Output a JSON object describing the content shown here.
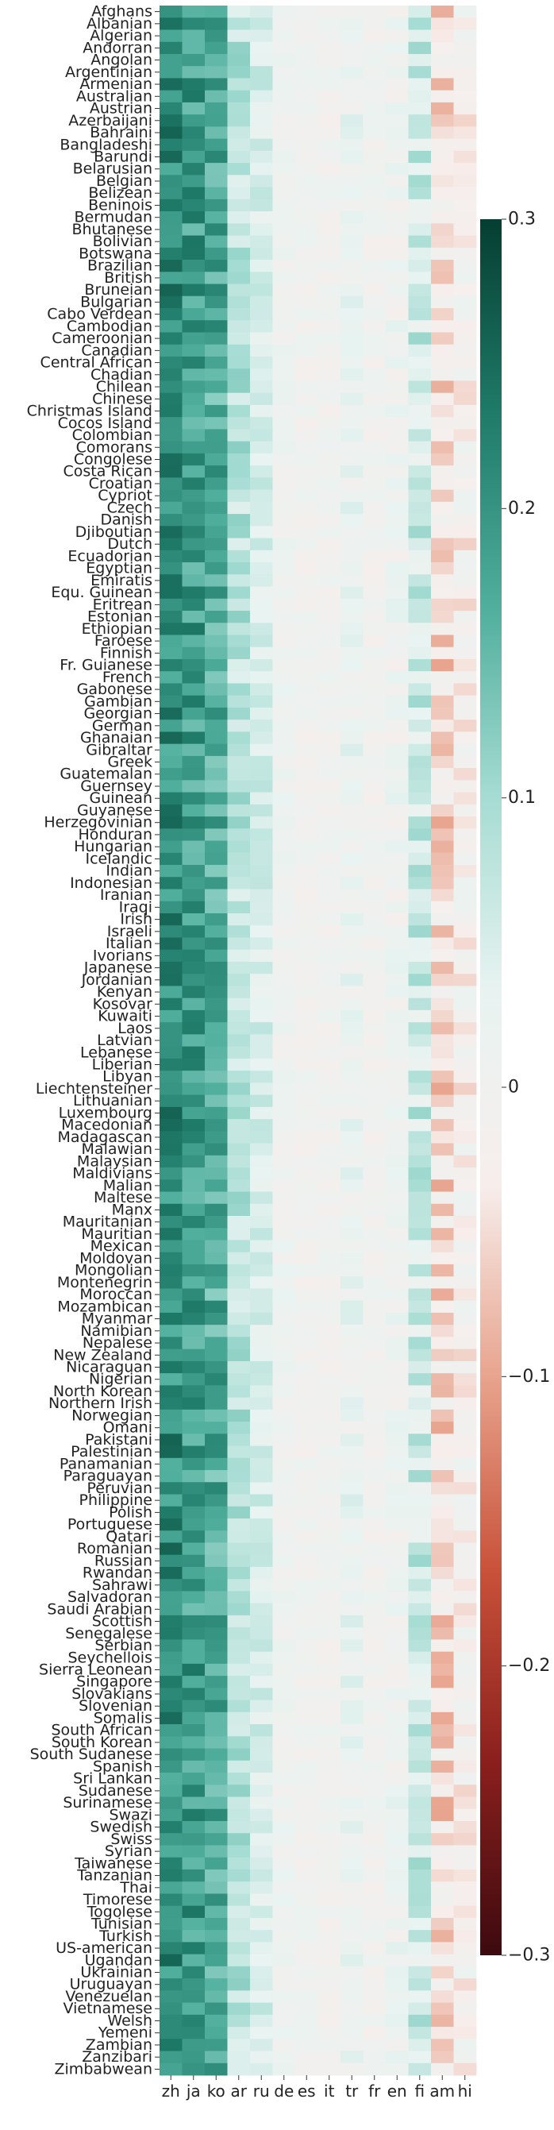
{
  "chart_data": {
    "type": "heatmap",
    "title": "",
    "xlabel": "",
    "ylabel": "",
    "columns": [
      "zh",
      "ja",
      "ko",
      "ar",
      "ru",
      "de",
      "es",
      "it",
      "tr",
      "fr",
      "en",
      "fi",
      "am",
      "hi"
    ],
    "rows": [
      "Afghans",
      "Albanian",
      "Algerian",
      "Andorran",
      "Angolan",
      "Argentinian",
      "Armenian",
      "Australian",
      "Austrian",
      "Azerbaijani",
      "Bahraini",
      "Bangladeshi",
      "Barundi",
      "Belarusian",
      "Belgian",
      "Belizean",
      "Beninois",
      "Bermudan",
      "Bhutanese",
      "Bolivian",
      "Botswana",
      "Brazilian",
      "British",
      "Bruneian",
      "Bulgarian",
      "Cabo Verdean",
      "Cambodian",
      "Cameroonian",
      "Canadian",
      "Central African",
      "Chadian",
      "Chilean",
      "Chinese",
      "Christmas Island",
      "Cocos Island",
      "Colombian",
      "Comorans",
      "Congolese",
      "Costa Rican",
      "Croatian",
      "Cypriot",
      "Czech",
      "Danish",
      "Djiboutian",
      "Dutch",
      "Ecuadorian",
      "Egyptian",
      "Emiratis",
      "Equ. Guinean",
      "Eritrean",
      "Estonian",
      "Ethiopian",
      "Faroese",
      "Finnish",
      "Fr. Guianese",
      "French",
      "Gabonese",
      "Gambian",
      "Georgian",
      "German",
      "Ghanaian",
      "Gibraltar",
      "Greek",
      "Guatemalan",
      "Guernsey",
      "Guinean",
      "Guyanese",
      "Herzegovinian",
      "Honduran",
      "Hungarian",
      "Icelandic",
      "Indian",
      "Indonesian",
      "Iranian",
      "Iraqi",
      "Irish",
      "Israeli",
      "Italian",
      "Ivorians",
      "Japanese",
      "Jordanian",
      "Kenyan",
      "Kosovar",
      "Kuwaiti",
      "Laos",
      "Latvian",
      "Lebanese",
      "Liberian",
      "Libyan",
      "Liechtensteiner",
      "Lithuanian",
      "Luxembourg",
      "Macedonian",
      "Madagascan",
      "Malawian",
      "Malaysian",
      "Maldivians",
      "Malian",
      "Maltese",
      "Manx",
      "Mauritanian",
      "Mauritian",
      "Mexican",
      "Moldovan",
      "Mongolian",
      "Montenegrin",
      "Moroccan",
      "Mozambican",
      "Myanmar",
      "Namibian",
      "Nepalese",
      "New Zealand",
      "Nicaraguan",
      "Nigerian",
      "North Korean",
      "Northern Irish",
      "Norwegian",
      "Omani",
      "Pakistani",
      "Palestinian",
      "Panamanian",
      "Paraguayan",
      "Peruvian",
      "Philippine",
      "Polish",
      "Portuguese",
      "Qatari",
      "Romanian",
      "Russian",
      "Rwandan",
      "Sahrawi",
      "Salvadoran",
      "Saudi Arabian",
      "Scottish",
      "Senegalese",
      "Serbian",
      "Seychellois",
      "Sierra Leonean",
      "Singapore",
      "Slovakians",
      "Slovenian",
      "Somalis",
      "South African",
      "South Korean",
      "South Sudanese",
      "Spanish",
      "Sri Lankan",
      "Sudanese",
      "Surinamese",
      "Swazi",
      "Swedish",
      "Swiss",
      "Syrian",
      "Taiwanese",
      "Tanzanian",
      "Thai",
      "Timorese",
      "Togolese",
      "Tunisian",
      "Turkish",
      "US-american",
      "Ugandan",
      "Ukrainian",
      "Uruguayan",
      "Venezuelan",
      "Vietnamese",
      "Welsh",
      "Yemeni",
      "Zambian",
      "Zanzibari",
      "Zimbabwean"
    ],
    "column_base": [
      0.21,
      0.19,
      0.17,
      0.08,
      0.05,
      0.01,
      0.0,
      0.0,
      0.02,
      0.0,
      0.01,
      0.06,
      -0.05,
      -0.02
    ],
    "column_spread": [
      0.05,
      0.05,
      0.05,
      0.04,
      0.03,
      0.02,
      0.02,
      0.02,
      0.03,
      0.02,
      0.03,
      0.05,
      0.05,
      0.04
    ],
    "colorbar": {
      "vmin": -0.3,
      "vmax": 0.3,
      "ticks": [
        0.3,
        0.2,
        0.1,
        0,
        -0.1,
        -0.2,
        -0.3
      ],
      "tick_labels": [
        "0.3",
        "0.2",
        "0.1",
        "0",
        "−0.1",
        "−0.2",
        "−0.3"
      ],
      "colors_low_to_high": [
        "#3d0a0f",
        "#8a1f1d",
        "#c9523a",
        "#e8a48e",
        "#f7eeec",
        "#e8f3f1",
        "#a6dcd3",
        "#4fae9c",
        "#1f7a68",
        "#053e31"
      ]
    }
  }
}
